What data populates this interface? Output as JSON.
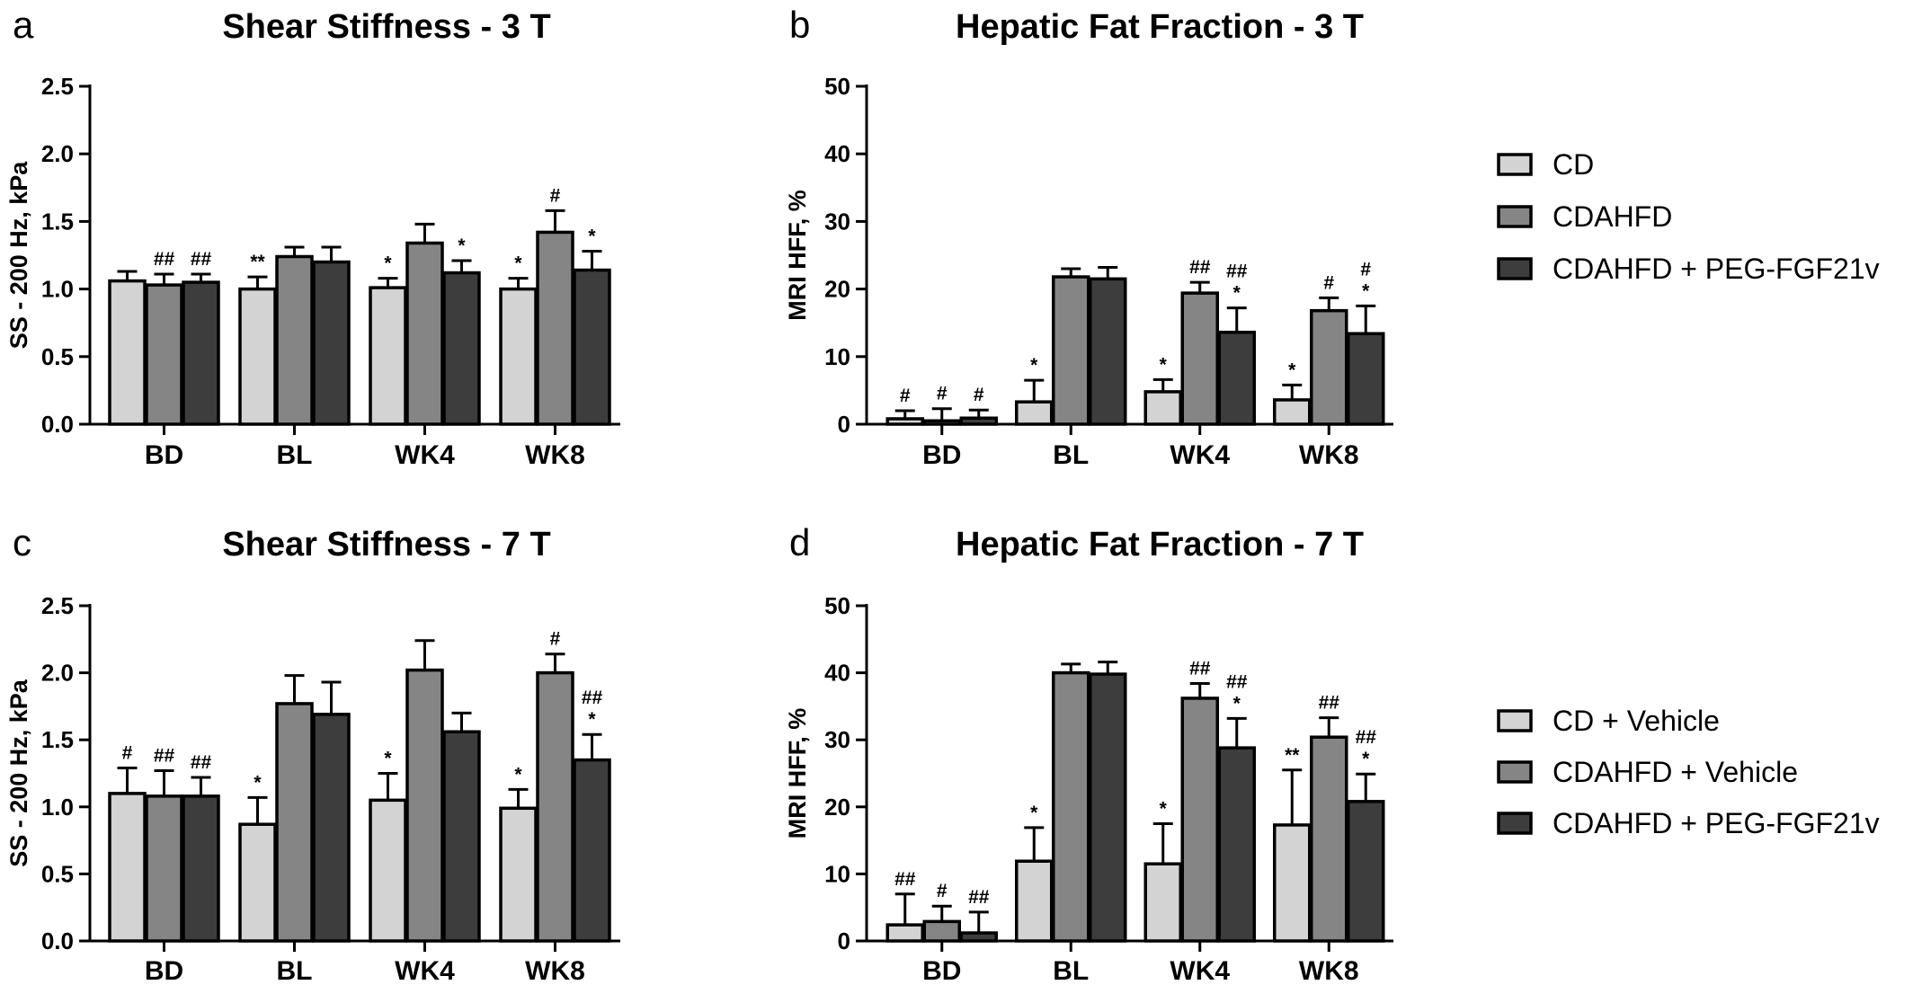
{
  "series_colors": [
    "#d3d3d3",
    "#858585",
    "#3d3d3d"
  ],
  "legend_top": {
    "items": [
      {
        "label": "CD",
        "color": "#d3d3d3"
      },
      {
        "label": "CDAHFD",
        "color": "#858585"
      },
      {
        "label": "CDAHFD + PEG-FGF21v",
        "color": "#3d3d3d"
      }
    ]
  },
  "legend_bottom": {
    "items": [
      {
        "label": "CD + Vehicle",
        "color": "#d3d3d3"
      },
      {
        "label": "CDAHFD + Vehicle",
        "color": "#858585"
      },
      {
        "label": "CDAHFD + PEG-FGF21v",
        "color": "#3d3d3d"
      }
    ]
  },
  "chart_data": [
    {
      "panel": "a",
      "type": "bar",
      "title": "Shear Stiffness - 3 T",
      "xlabel": "",
      "ylabel": "SS - 200 Hz, kPa",
      "ylim": [
        0,
        2.5
      ],
      "yticks": [
        "0.0",
        "0.5",
        "1.0",
        "1.5",
        "2.0",
        "2.5"
      ],
      "categories": [
        "BD",
        "BL",
        "WK4",
        "WK8"
      ],
      "series": [
        {
          "values": [
            1.06,
            1.0,
            1.01,
            1.0
          ],
          "errors": [
            0.07,
            0.09,
            0.07,
            0.08
          ],
          "annotations": [
            [],
            [
              "**"
            ],
            [
              "*"
            ],
            [
              "*"
            ]
          ]
        },
        {
          "values": [
            1.03,
            1.24,
            1.34,
            1.42
          ],
          "errors": [
            0.08,
            0.07,
            0.14,
            0.16
          ],
          "annotations": [
            [
              "##"
            ],
            [],
            [],
            [
              "#"
            ]
          ]
        },
        {
          "values": [
            1.05,
            1.2,
            1.12,
            1.14
          ],
          "errors": [
            0.06,
            0.11,
            0.09,
            0.14
          ],
          "annotations": [
            [
              "##"
            ],
            [],
            [
              "*"
            ],
            [
              "*"
            ]
          ]
        }
      ]
    },
    {
      "panel": "b",
      "type": "bar",
      "title": "Hepatic Fat Fraction - 3 T",
      "xlabel": "",
      "ylabel": "MRI HFF, %",
      "ylim": [
        0,
        50
      ],
      "yticks": [
        "0",
        "10",
        "20",
        "30",
        "40",
        "50"
      ],
      "categories": [
        "BD",
        "BL",
        "WK4",
        "WK8"
      ],
      "series": [
        {
          "values": [
            0.8,
            3.3,
            4.8,
            3.6
          ],
          "errors": [
            1.2,
            3.2,
            1.8,
            2.2
          ],
          "annotations": [
            [
              "#"
            ],
            [
              "*"
            ],
            [
              "*"
            ],
            [
              "*"
            ]
          ]
        },
        {
          "values": [
            0.5,
            21.8,
            19.4,
            16.8
          ],
          "errors": [
            1.8,
            1.2,
            1.6,
            1.9
          ],
          "annotations": [
            [
              "#"
            ],
            [],
            [
              "##"
            ],
            [
              "#"
            ]
          ]
        },
        {
          "values": [
            0.9,
            21.5,
            13.6,
            13.4
          ],
          "errors": [
            1.2,
            1.7,
            3.6,
            4.1
          ],
          "annotations": [
            [
              "#"
            ],
            [],
            [
              "##",
              "*"
            ],
            [
              "#",
              "*"
            ]
          ]
        }
      ]
    },
    {
      "panel": "c",
      "type": "bar",
      "title": "Shear Stiffness - 7 T",
      "xlabel": "",
      "ylabel": "SS - 200 Hz, kPa",
      "ylim": [
        0,
        2.5
      ],
      "yticks": [
        "0.0",
        "0.5",
        "1.0",
        "1.5",
        "2.0",
        "2.5"
      ],
      "categories": [
        "BD",
        "BL",
        "WK4",
        "WK8"
      ],
      "series": [
        {
          "values": [
            1.1,
            0.87,
            1.05,
            0.99
          ],
          "errors": [
            0.19,
            0.2,
            0.2,
            0.14
          ],
          "annotations": [
            [
              "#"
            ],
            [
              "*"
            ],
            [
              "*"
            ],
            [
              "*"
            ]
          ]
        },
        {
          "values": [
            1.08,
            1.77,
            2.02,
            2.0
          ],
          "errors": [
            0.19,
            0.21,
            0.22,
            0.14
          ],
          "annotations": [
            [
              "##"
            ],
            [],
            [],
            [
              "#"
            ]
          ]
        },
        {
          "values": [
            1.08,
            1.69,
            1.56,
            1.35
          ],
          "errors": [
            0.14,
            0.24,
            0.14,
            0.19
          ],
          "annotations": [
            [
              "##"
            ],
            [],
            [],
            [
              "##",
              "*"
            ]
          ]
        }
      ]
    },
    {
      "panel": "d",
      "type": "bar",
      "title": "Hepatic Fat Fraction - 7 T",
      "xlabel": "",
      "ylabel": "MRI HFF, %",
      "ylim": [
        0,
        50
      ],
      "yticks": [
        "0",
        "10",
        "20",
        "30",
        "40",
        "50"
      ],
      "categories": [
        "BD",
        "BL",
        "WK4",
        "WK8"
      ],
      "series": [
        {
          "values": [
            2.4,
            11.9,
            11.5,
            17.3
          ],
          "errors": [
            4.6,
            5.0,
            6.0,
            8.2
          ],
          "annotations": [
            [
              "##"
            ],
            [
              "*"
            ],
            [
              "*"
            ],
            [
              "**"
            ]
          ]
        },
        {
          "values": [
            2.9,
            40.0,
            36.2,
            30.4
          ],
          "errors": [
            2.3,
            1.3,
            2.2,
            2.9
          ],
          "annotations": [
            [
              "#"
            ],
            [],
            [
              "##"
            ],
            [
              "##"
            ]
          ]
        },
        {
          "values": [
            1.2,
            39.8,
            28.8,
            20.8
          ],
          "errors": [
            3.1,
            1.8,
            4.4,
            4.1
          ],
          "annotations": [
            [
              "##"
            ],
            [],
            [
              "##",
              "*"
            ],
            [
              "##",
              "*"
            ]
          ]
        }
      ]
    }
  ]
}
